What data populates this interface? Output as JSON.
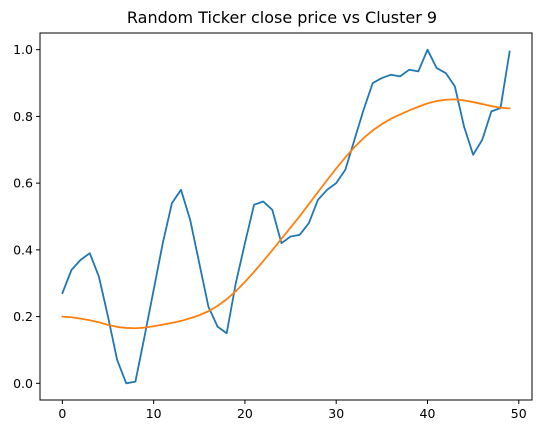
{
  "chart_data": {
    "type": "line",
    "title": "Random Ticker close price vs Cluster 9",
    "xlabel": "",
    "ylabel": "",
    "xlim": [
      -2.45,
      51.45
    ],
    "ylim": [
      -0.05,
      1.05
    ],
    "x_ticks": [
      0,
      10,
      20,
      30,
      40,
      50
    ],
    "x_tick_labels": [
      "0",
      "10",
      "20",
      "30",
      "40",
      "50"
    ],
    "y_ticks": [
      0.0,
      0.2,
      0.4,
      0.6,
      0.8,
      1.0
    ],
    "y_tick_labels": [
      "0.0",
      "0.2",
      "0.4",
      "0.6",
      "0.8",
      "1.0"
    ],
    "grid": false,
    "legend": "none",
    "x": [
      0,
      1,
      2,
      3,
      4,
      5,
      6,
      7,
      8,
      9,
      10,
      11,
      12,
      13,
      14,
      15,
      16,
      17,
      18,
      19,
      20,
      21,
      22,
      23,
      24,
      25,
      26,
      27,
      28,
      29,
      30,
      31,
      32,
      33,
      34,
      35,
      36,
      37,
      38,
      39,
      40,
      41,
      42,
      43,
      44,
      45,
      46,
      47,
      48,
      49
    ],
    "series": [
      {
        "color": "#1f77b4",
        "values": [
          0.27,
          0.34,
          0.37,
          0.39,
          0.32,
          0.2,
          0.07,
          0.0,
          0.005,
          0.14,
          0.28,
          0.42,
          0.54,
          0.58,
          0.49,
          0.36,
          0.23,
          0.17,
          0.15,
          0.3,
          0.42,
          0.535,
          0.545,
          0.52,
          0.42,
          0.44,
          0.445,
          0.48,
          0.55,
          0.58,
          0.6,
          0.64,
          0.73,
          0.82,
          0.9,
          0.915,
          0.925,
          0.92,
          0.94,
          0.935,
          1.0,
          0.945,
          0.93,
          0.89,
          0.77,
          0.685,
          0.73,
          0.815,
          0.825,
          0.995
        ]
      },
      {
        "color": "#ff7f0e",
        "values": [
          0.2,
          0.198,
          0.194,
          0.189,
          0.183,
          0.175,
          0.169,
          0.166,
          0.165,
          0.167,
          0.171,
          0.176,
          0.181,
          0.187,
          0.195,
          0.204,
          0.216,
          0.232,
          0.252,
          0.276,
          0.304,
          0.334,
          0.366,
          0.399,
          0.433,
          0.467,
          0.501,
          0.537,
          0.573,
          0.609,
          0.644,
          0.677,
          0.708,
          0.735,
          0.758,
          0.777,
          0.793,
          0.806,
          0.818,
          0.829,
          0.839,
          0.846,
          0.85,
          0.851,
          0.848,
          0.843,
          0.837,
          0.831,
          0.826,
          0.824
        ]
      }
    ]
  }
}
